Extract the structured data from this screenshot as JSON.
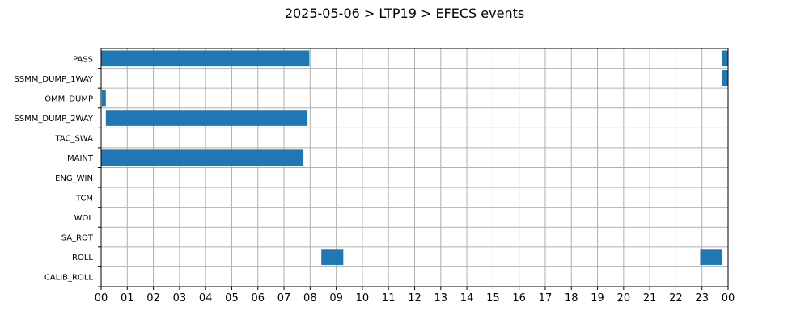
{
  "chart_data": {
    "type": "gantt",
    "title": "2025-05-06 > LTP19 > EFECS events",
    "xlabel": "",
    "ylabel": "",
    "x_range_hours": [
      0,
      24
    ],
    "x_tick_labels": [
      "00",
      "01",
      "02",
      "03",
      "04",
      "05",
      "06",
      "07",
      "08",
      "09",
      "10",
      "11",
      "12",
      "13",
      "14",
      "15",
      "16",
      "17",
      "18",
      "19",
      "20",
      "21",
      "22",
      "23",
      "00"
    ],
    "grid": true,
    "bar_color": "#1f77b4",
    "categories": [
      "PASS",
      "SSMM_DUMP_1WAY",
      "OMM_DUMP",
      "SSMM_DUMP_2WAY",
      "TAC_SWA",
      "MAINT",
      "ENG_WIN",
      "TCM",
      "WOL",
      "SA_ROT",
      "ROLL",
      "CALIB_ROLL"
    ],
    "events": [
      {
        "category": "PASS",
        "start_hour": 0.0,
        "end_hour": 7.97
      },
      {
        "category": "PASS",
        "start_hour": 23.76,
        "end_hour": 24.0
      },
      {
        "category": "SSMM_DUMP_1WAY",
        "start_hour": 23.78,
        "end_hour": 24.0
      },
      {
        "category": "OMM_DUMP",
        "start_hour": 0.03,
        "end_hour": 0.18
      },
      {
        "category": "SSMM_DUMP_2WAY",
        "start_hour": 0.18,
        "end_hour": 7.9
      },
      {
        "category": "MAINT",
        "start_hour": 0.0,
        "end_hour": 7.72
      },
      {
        "category": "ROLL",
        "start_hour": 8.43,
        "end_hour": 9.27
      },
      {
        "category": "ROLL",
        "start_hour": 22.93,
        "end_hour": 23.76
      }
    ]
  }
}
